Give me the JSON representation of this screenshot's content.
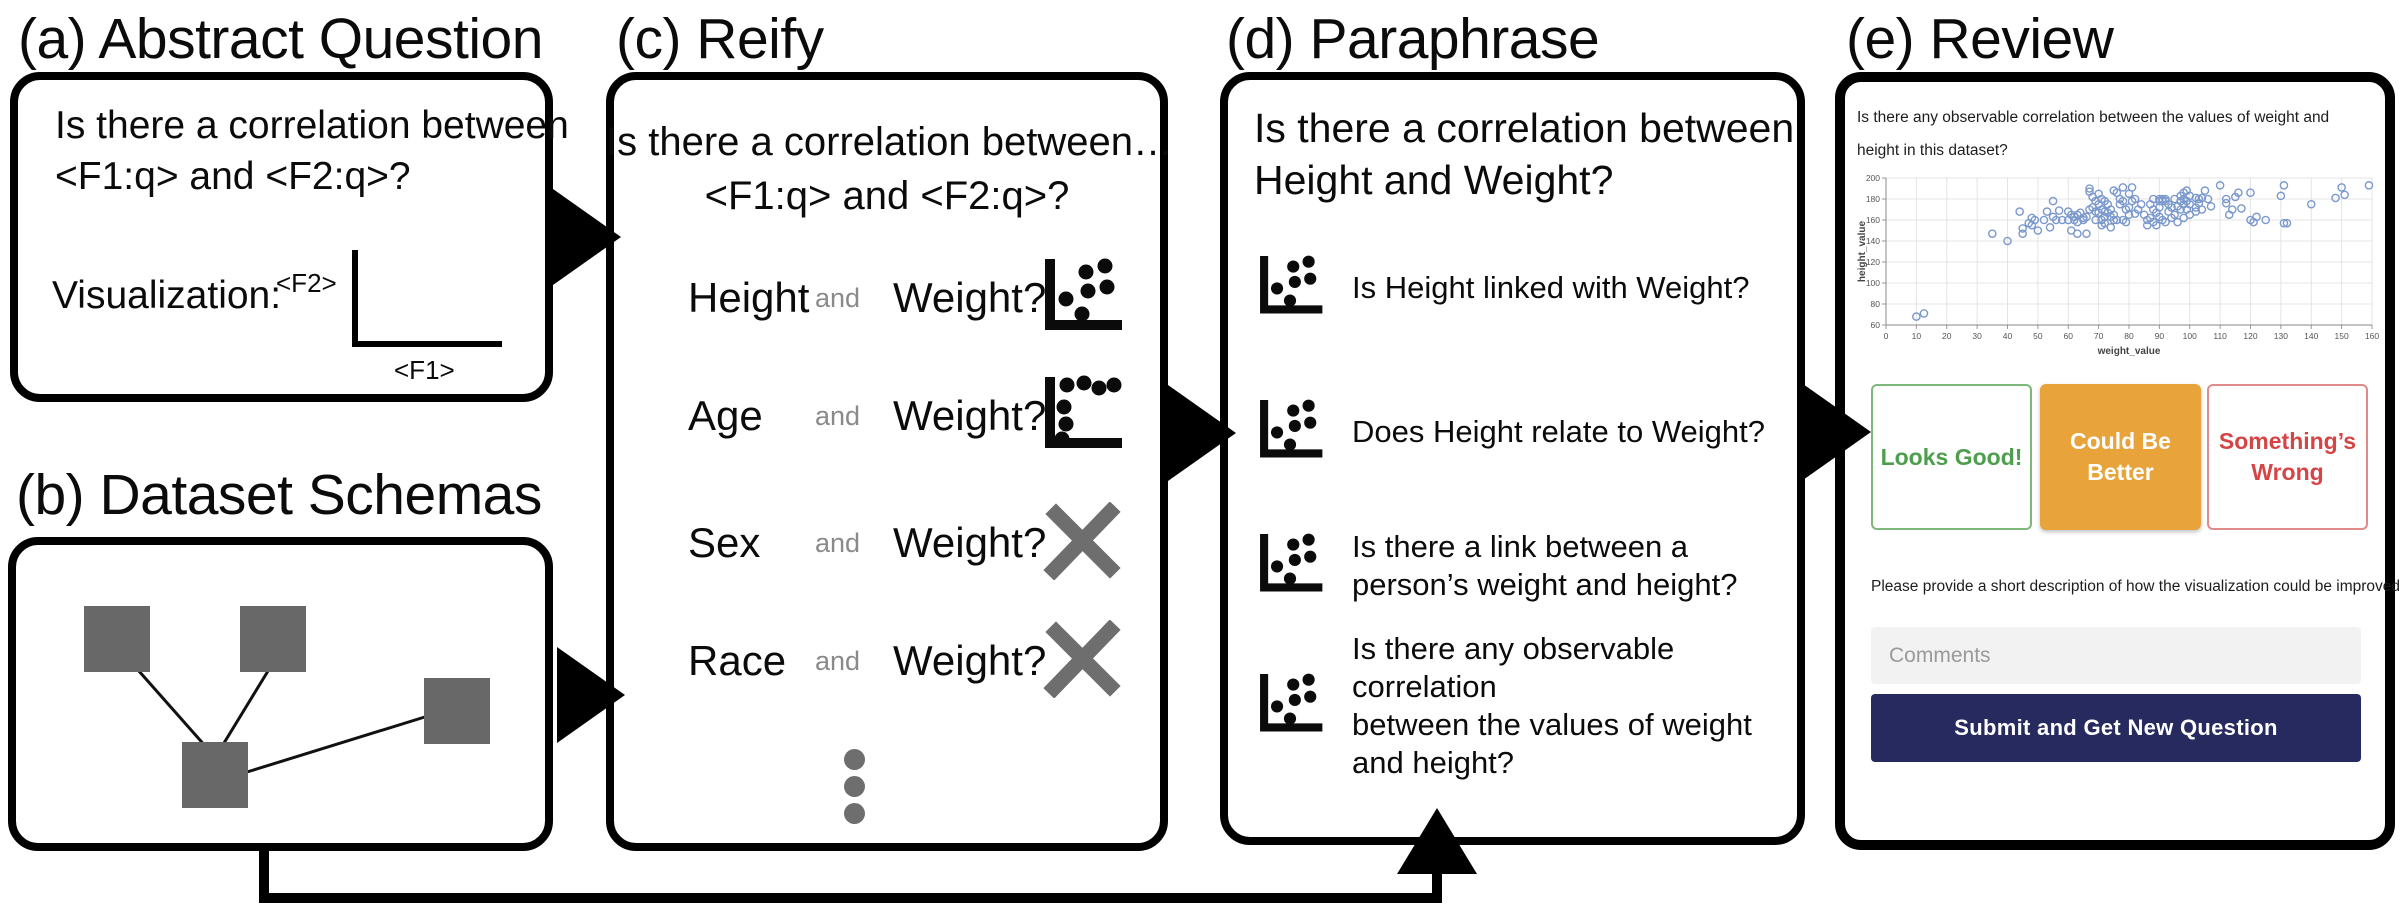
{
  "panels": {
    "a": {
      "title": "(a) Abstract Question",
      "question_line1": "Is there a correlation between",
      "question_line2": "<F1:q> and <F2:q>?",
      "visualization_label": "Visualization:",
      "axis_y_label": "<F2>",
      "axis_x_label": "<F1>"
    },
    "b": {
      "title": "(b) Dataset Schemas"
    },
    "c": {
      "title": "(c) Reify",
      "header_line1": "Is there a correlation between…",
      "header_line2": "<F1:q> and <F2:q>?",
      "rows": [
        {
          "field": "Height",
          "conj": "and",
          "target": "Weight?",
          "result": "scatter"
        },
        {
          "field": "Age",
          "conj": "and",
          "target": "Weight?",
          "result": "scatter"
        },
        {
          "field": "Sex",
          "conj": "and",
          "target": "Weight?",
          "result": "reject"
        },
        {
          "field": "Race",
          "conj": "and",
          "target": "Weight?",
          "result": "reject"
        }
      ]
    },
    "d": {
      "title": "(d) Paraphrase",
      "header_line1": "Is there a correlation between",
      "header_line2": "Height and Weight?",
      "items": [
        {
          "lines": [
            "Is Height linked with Weight?"
          ]
        },
        {
          "lines": [
            "Does Height relate to Weight?"
          ]
        },
        {
          "lines": [
            "Is there a link between a",
            "person’s weight and height?"
          ]
        },
        {
          "lines": [
            "Is there any observable correlation",
            "between the values of weight and height?"
          ]
        }
      ]
    },
    "e": {
      "title": "(e) Review",
      "question_line1": "Is there any observable correlation between the values of weight and",
      "question_line2": "height in this dataset?",
      "buttons": [
        {
          "label": "Looks Good!",
          "style": "good",
          "color": "#4d9e4d"
        },
        {
          "label": "Could Be Better",
          "style": "better",
          "color": "#e8a33b"
        },
        {
          "label": "Something’s Wrong",
          "style": "wrong",
          "color": "#d64545"
        }
      ],
      "prompt": "Please provide a short description of how the visualization could be improved.",
      "comments_placeholder": "Comments",
      "submit_label": "Submit and Get New Question",
      "submit_color": "#262a5e"
    }
  },
  "colors": {
    "diagram_ink": "#000000",
    "schema_gray": "#686868",
    "reject_x_gray": "#6e6e6e",
    "conj_gray": "#8a8a8a",
    "good_green": "#4d9e4d",
    "better_amber": "#e8a33b",
    "wrong_red": "#d64545",
    "submit_navy": "#262a5e",
    "point_blue": "#7b99cc"
  },
  "chart_data": {
    "type": "scatter",
    "title": "",
    "xlabel": "weight_value",
    "ylabel": "height_value",
    "xlim": [
      0,
      160
    ],
    "ylim": [
      60,
      200
    ],
    "xtick_step": 10,
    "ytick_step": 20,
    "grid": true,
    "legend": "none",
    "marker": "open-circle",
    "points": [
      [
        10,
        68
      ],
      [
        12.5,
        71
      ],
      [
        35,
        147
      ],
      [
        40,
        140
      ],
      [
        44,
        168
      ],
      [
        45,
        152
      ],
      [
        45,
        147
      ],
      [
        47,
        157
      ],
      [
        48,
        162
      ],
      [
        48,
        155
      ],
      [
        49,
        160
      ],
      [
        50,
        150
      ],
      [
        52,
        160
      ],
      [
        53,
        168
      ],
      [
        54,
        153
      ],
      [
        55,
        178
      ],
      [
        55,
        163
      ],
      [
        56,
        160
      ],
      [
        57,
        169
      ],
      [
        58,
        160
      ],
      [
        60,
        168
      ],
      [
        60,
        160
      ],
      [
        61,
        165
      ],
      [
        61,
        150
      ],
      [
        62,
        163
      ],
      [
        62,
        160
      ],
      [
        63,
        165
      ],
      [
        63,
        158
      ],
      [
        63,
        147
      ],
      [
        64,
        167
      ],
      [
        65,
        162
      ],
      [
        65,
        160
      ],
      [
        66,
        163
      ],
      [
        66,
        147
      ],
      [
        67,
        190
      ],
      [
        67,
        187
      ],
      [
        67,
        170
      ],
      [
        68,
        182
      ],
      [
        68,
        172
      ],
      [
        69,
        178
      ],
      [
        69,
        168
      ],
      [
        69,
        160
      ],
      [
        70,
        185
      ],
      [
        70,
        175
      ],
      [
        70,
        167
      ],
      [
        71,
        180
      ],
      [
        71,
        170
      ],
      [
        71,
        160
      ],
      [
        71,
        155
      ],
      [
        72,
        178
      ],
      [
        72,
        168
      ],
      [
        72,
        163
      ],
      [
        72,
        157
      ],
      [
        73,
        175
      ],
      [
        73,
        167
      ],
      [
        74,
        170
      ],
      [
        74,
        163
      ],
      [
        74,
        153
      ],
      [
        75,
        188
      ],
      [
        75,
        165
      ],
      [
        75,
        160
      ],
      [
        76,
        186
      ],
      [
        76,
        160
      ],
      [
        77,
        180
      ],
      [
        77,
        175
      ],
      [
        78,
        191
      ],
      [
        78,
        178
      ],
      [
        78,
        160
      ],
      [
        79,
        170
      ],
      [
        79,
        158
      ],
      [
        80,
        185
      ],
      [
        80,
        172
      ],
      [
        80,
        165
      ],
      [
        81,
        191
      ],
      [
        81,
        178
      ],
      [
        82,
        180
      ],
      [
        82,
        166
      ],
      [
        83,
        170
      ],
      [
        84,
        175
      ],
      [
        85,
        165
      ],
      [
        86,
        160
      ],
      [
        86,
        155
      ],
      [
        87,
        175
      ],
      [
        87,
        162
      ],
      [
        88,
        180
      ],
      [
        88,
        170
      ],
      [
        88,
        158
      ],
      [
        89,
        167
      ],
      [
        89,
        155
      ],
      [
        90,
        180
      ],
      [
        90,
        178
      ],
      [
        90,
        172
      ],
      [
        90,
        163
      ],
      [
        91,
        180
      ],
      [
        91,
        178
      ],
      [
        91,
        160
      ],
      [
        92,
        180
      ],
      [
        92,
        178
      ],
      [
        92,
        158
      ],
      [
        93,
        175
      ],
      [
        93,
        168
      ],
      [
        94,
        172
      ],
      [
        94,
        162
      ],
      [
        95,
        180
      ],
      [
        95,
        165
      ],
      [
        96,
        173
      ],
      [
        96,
        158
      ],
      [
        97,
        183
      ],
      [
        97,
        178
      ],
      [
        97,
        170
      ],
      [
        98,
        186
      ],
      [
        98,
        180
      ],
      [
        98,
        175
      ],
      [
        98,
        162
      ],
      [
        99,
        188
      ],
      [
        99,
        178
      ],
      [
        99,
        170
      ],
      [
        100,
        183
      ],
      [
        100,
        175
      ],
      [
        100,
        165
      ],
      [
        102,
        181
      ],
      [
        102,
        172
      ],
      [
        102,
        168
      ],
      [
        103,
        180
      ],
      [
        103,
        176
      ],
      [
        104,
        181
      ],
      [
        104,
        170
      ],
      [
        105,
        188
      ],
      [
        106,
        180
      ],
      [
        107,
        173
      ],
      [
        110,
        193
      ],
      [
        112,
        180
      ],
      [
        112,
        176
      ],
      [
        113,
        165
      ],
      [
        114,
        170
      ],
      [
        115,
        182
      ],
      [
        116,
        186
      ],
      [
        117,
        171
      ],
      [
        120,
        186
      ],
      [
        120,
        160
      ],
      [
        121,
        158
      ],
      [
        122,
        163
      ],
      [
        125,
        160
      ],
      [
        130,
        183
      ],
      [
        131,
        193
      ],
      [
        131,
        157
      ],
      [
        132,
        157
      ],
      [
        140,
        175
      ],
      [
        148,
        181
      ],
      [
        150,
        191
      ],
      [
        151,
        184
      ],
      [
        159,
        193
      ]
    ]
  }
}
